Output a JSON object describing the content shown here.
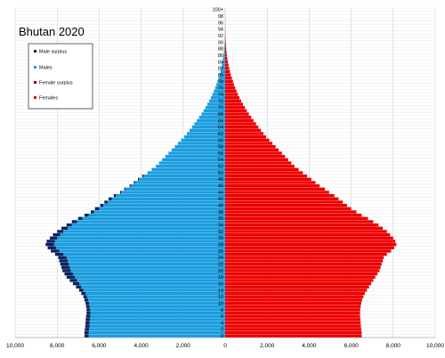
{
  "chart_data": {
    "type": "bar",
    "orientation": "horizontal-back-to-back",
    "title": "Bhutan 2020",
    "xlim": [
      -10000,
      10000
    ],
    "x_tick_labels": [
      "10,000",
      "8,000",
      "6,000",
      "4,000",
      "2,000",
      "0",
      "2,000",
      "4,000",
      "6,000",
      "8,000",
      "10,000"
    ],
    "age_labels_shown": [
      "0",
      "2",
      "4",
      "6",
      "8",
      "10",
      "12",
      "14",
      "16",
      "18",
      "20",
      "22",
      "24",
      "26",
      "28",
      "30",
      "32",
      "34",
      "36",
      "38",
      "40",
      "42",
      "44",
      "46",
      "48",
      "50",
      "52",
      "54",
      "56",
      "58",
      "60",
      "62",
      "64",
      "66",
      "68",
      "70",
      "72",
      "74",
      "76",
      "78",
      "80",
      "82",
      "84",
      "86",
      "88",
      "90",
      "92",
      "94",
      "96",
      "98",
      "100+"
    ],
    "ages": [
      "0",
      "1",
      "2",
      "3",
      "4",
      "5",
      "6",
      "7",
      "8",
      "9",
      "10",
      "11",
      "12",
      "13",
      "14",
      "15",
      "16",
      "17",
      "18",
      "19",
      "20",
      "21",
      "22",
      "23",
      "24",
      "25",
      "26",
      "27",
      "28",
      "29",
      "30",
      "31",
      "32",
      "33",
      "34",
      "35",
      "36",
      "37",
      "38",
      "39",
      "40",
      "41",
      "42",
      "43",
      "44",
      "45",
      "46",
      "47",
      "48",
      "49",
      "50",
      "51",
      "52",
      "53",
      "54",
      "55",
      "56",
      "57",
      "58",
      "59",
      "60",
      "61",
      "62",
      "63",
      "64",
      "65",
      "66",
      "67",
      "68",
      "69",
      "70",
      "71",
      "72",
      "73",
      "74",
      "75",
      "76",
      "77",
      "78",
      "79",
      "80",
      "81",
      "82",
      "83",
      "84",
      "85",
      "86",
      "87",
      "88",
      "89",
      "90",
      "91",
      "92",
      "93",
      "94",
      "95",
      "96",
      "97",
      "98",
      "99",
      "100+"
    ],
    "series": [
      {
        "name": "Males",
        "color": "#1a9de0",
        "values": [
          6700,
          6700,
          6680,
          6660,
          6650,
          6640,
          6620,
          6600,
          6600,
          6620,
          6650,
          6700,
          6750,
          6850,
          6950,
          7100,
          7250,
          7400,
          7550,
          7650,
          7750,
          7800,
          7850,
          7900,
          7950,
          8100,
          8300,
          8450,
          8550,
          8500,
          8350,
          8200,
          8000,
          7800,
          7550,
          7300,
          7000,
          6700,
          6400,
          6200,
          5950,
          5750,
          5550,
          5300,
          5000,
          4800,
          4550,
          4350,
          4150,
          3950,
          3700,
          3500,
          3300,
          3150,
          3000,
          2850,
          2700,
          2550,
          2400,
          2250,
          2100,
          1950,
          1820,
          1700,
          1580,
          1470,
          1350,
          1240,
          1130,
          1030,
          940,
          850,
          760,
          680,
          610,
          540,
          480,
          420,
          370,
          320,
          270,
          230,
          195,
          160,
          130,
          105,
          82,
          63,
          47,
          35,
          25,
          18,
          12,
          8,
          5,
          3,
          2,
          1,
          1,
          0,
          0
        ]
      },
      {
        "name": "Females",
        "color": "#ee0000",
        "values": [
          6500,
          6500,
          6480,
          6460,
          6450,
          6440,
          6420,
          6420,
          6430,
          6450,
          6480,
          6520,
          6580,
          6650,
          6750,
          6850,
          6950,
          7050,
          7150,
          7250,
          7350,
          7400,
          7450,
          7500,
          7550,
          7700,
          7900,
          8050,
          8150,
          8100,
          8000,
          7850,
          7700,
          7500,
          7300,
          7050,
          6800,
          6500,
          6250,
          6000,
          5800,
          5600,
          5400,
          5200,
          4950,
          4750,
          4500,
          4300,
          4100,
          3900,
          3700,
          3500,
          3300,
          3150,
          3000,
          2850,
          2700,
          2550,
          2400,
          2250,
          2100,
          1950,
          1820,
          1700,
          1580,
          1470,
          1350,
          1240,
          1130,
          1030,
          940,
          850,
          760,
          680,
          610,
          540,
          480,
          420,
          370,
          320,
          270,
          230,
          195,
          160,
          130,
          105,
          82,
          63,
          47,
          35,
          25,
          18,
          12,
          8,
          5,
          3,
          2,
          1,
          1,
          0,
          0
        ]
      }
    ],
    "surplus_colors": {
      "male_surplus": "#0a2260",
      "female_surplus": "#990000"
    },
    "legend": {
      "placement": "top-left",
      "entries": [
        {
          "label": "Male surplus",
          "color": "#0a2260"
        },
        {
          "label": "Males",
          "color": "#1a9de0"
        },
        {
          "label": "Female surplus",
          "color": "#990000"
        },
        {
          "label": "Females",
          "color": "#ee0000"
        }
      ]
    },
    "grid": true
  }
}
